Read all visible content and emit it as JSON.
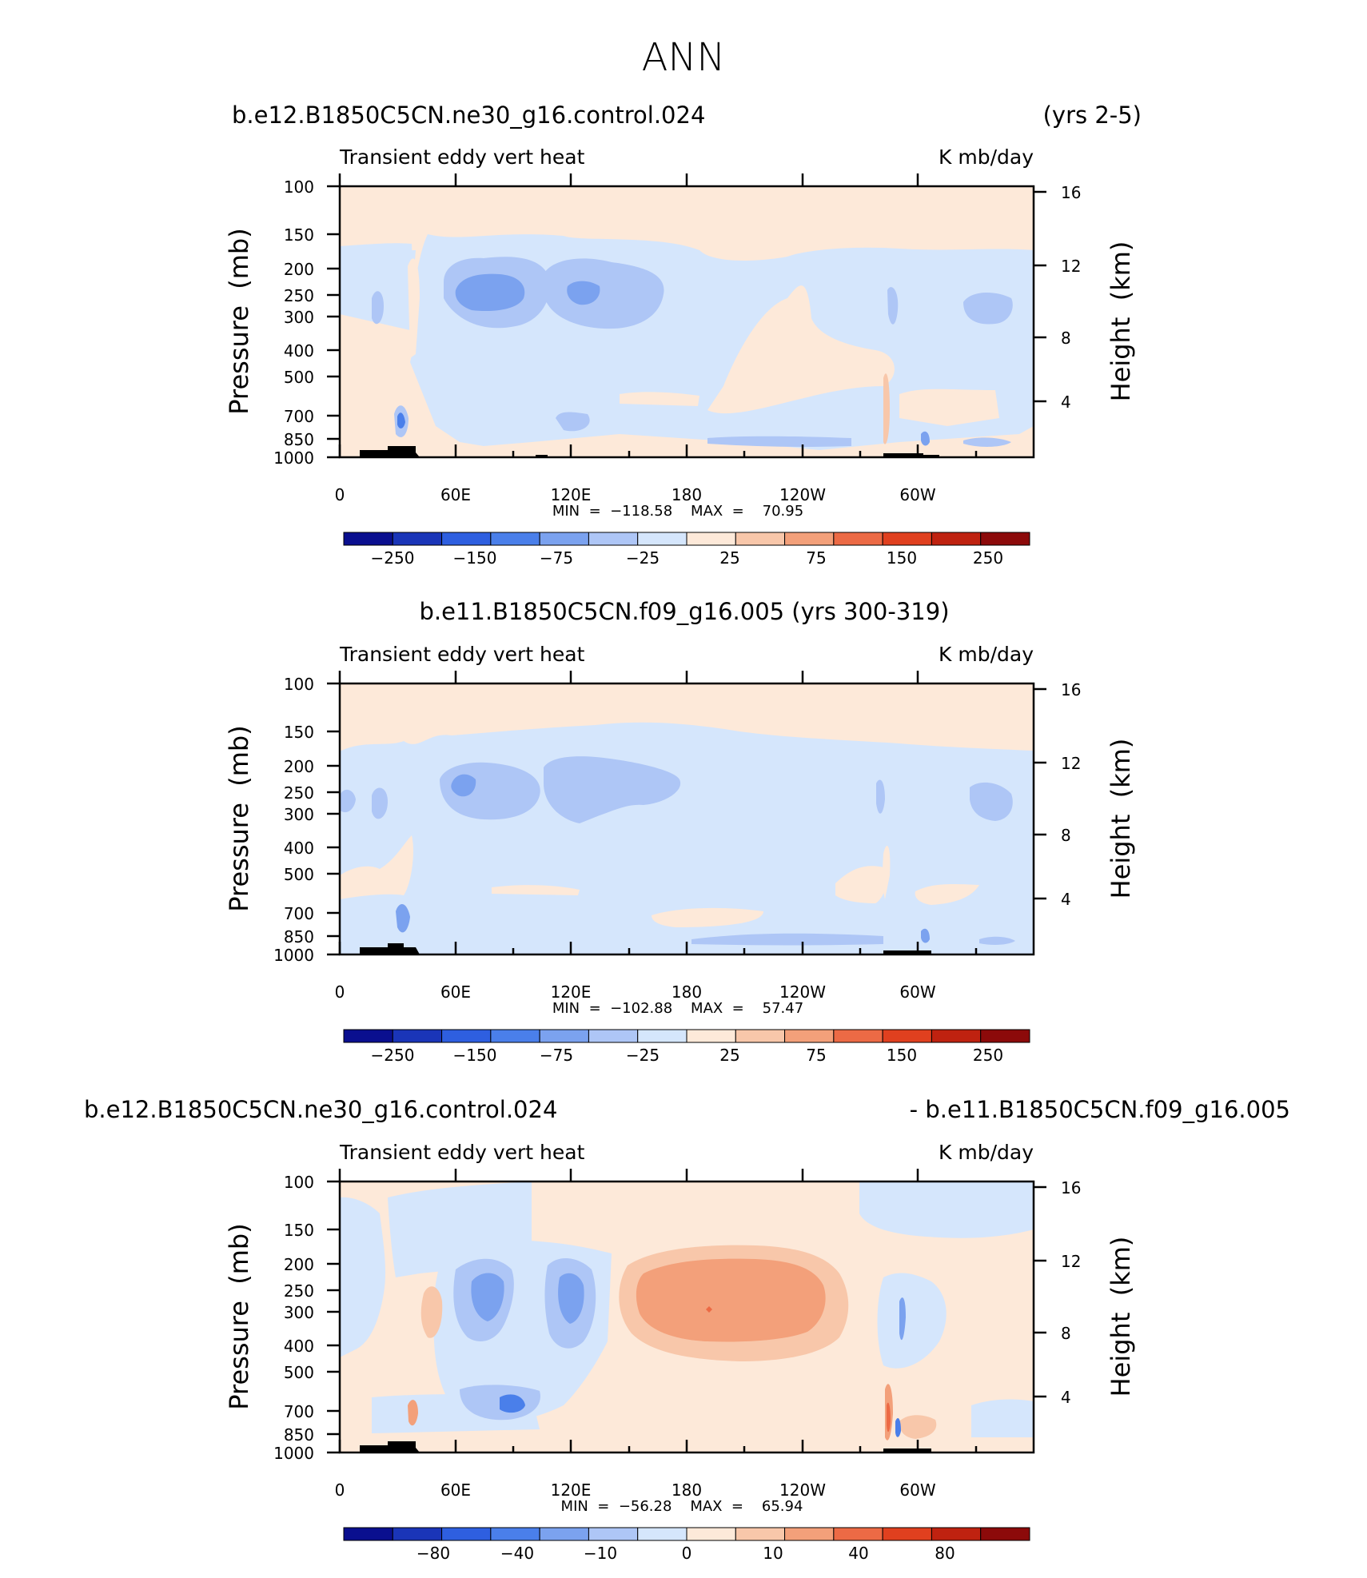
{
  "figure": {
    "title": "ANN"
  },
  "chart_data": [
    {
      "type": "heatmap",
      "title_left": "b.e12.B1850C5CN.ne30_g16.control.024",
      "title_right": "(yrs 2-5)",
      "label_left": "Transient  eddy  vert  heat",
      "label_right": "K  mb/day",
      "ylabel": "Pressure  (mb)",
      "ylabel_right": "Height  (km)",
      "pressure_ticks": [
        "100",
        "150",
        "200",
        "250",
        "300",
        "400",
        "500",
        "700",
        "850",
        "1000"
      ],
      "height_ticks": [
        "16",
        "12",
        "8",
        "4"
      ],
      "x_ticks": [
        "0",
        "60E",
        "120E",
        "180",
        "120W",
        "60W"
      ],
      "stats": "MIN  =  −118.58    MAX  =    70.95",
      "min": -118.58,
      "max": 70.95,
      "colorbar_labels": [
        "−250",
        "−150",
        "−75",
        "−25",
        "25",
        "75",
        "150",
        "250"
      ]
    },
    {
      "type": "heatmap",
      "title_center": "b.e11.B1850C5CN.f09_g16.005 (yrs 300-319)",
      "label_left": "Transient  eddy  vert  heat",
      "label_right": "K  mb/day",
      "ylabel": "Pressure  (mb)",
      "ylabel_right": "Height  (km)",
      "pressure_ticks": [
        "100",
        "150",
        "200",
        "250",
        "300",
        "400",
        "500",
        "700",
        "850",
        "1000"
      ],
      "height_ticks": [
        "16",
        "12",
        "8",
        "4"
      ],
      "x_ticks": [
        "0",
        "60E",
        "120E",
        "180",
        "120W",
        "60W"
      ],
      "stats": "MIN  =  −102.88    MAX  =    57.47",
      "min": -102.88,
      "max": 57.47,
      "colorbar_labels": [
        "−250",
        "−150",
        "−75",
        "−25",
        "25",
        "75",
        "150",
        "250"
      ]
    },
    {
      "type": "heatmap",
      "title_left": "b.e12.B1850C5CN.ne30_g16.control.024",
      "title_right": "- b.e11.B1850C5CN.f09_g16.005",
      "label_left": "Transient  eddy  vert  heat",
      "label_right": "K  mb/day",
      "ylabel": "Pressure  (mb)",
      "ylabel_right": "Height  (km)",
      "pressure_ticks": [
        "100",
        "150",
        "200",
        "250",
        "300",
        "400",
        "500",
        "700",
        "850",
        "1000"
      ],
      "height_ticks": [
        "16",
        "12",
        "8",
        "4"
      ],
      "x_ticks": [
        "0",
        "60E",
        "120E",
        "180",
        "120W",
        "60W"
      ],
      "stats": "MIN  =  −56.28    MAX  =    65.94",
      "min": -56.28,
      "max": 65.94,
      "colorbar_labels": [
        "−80",
        "−40",
        "−10",
        "0",
        "10",
        "40",
        "80"
      ]
    }
  ],
  "colors": {
    "scale": [
      "#0a0f8f",
      "#1a35b8",
      "#2e5fe0",
      "#4a7fea",
      "#7ba2ef",
      "#aec6f6",
      "#d5e6fc",
      "#fde9d9",
      "#f8c7aa",
      "#f3a07a",
      "#ec6a45",
      "#e0401f",
      "#bf2210",
      "#8c0a0a"
    ],
    "terrain": "#000000"
  }
}
